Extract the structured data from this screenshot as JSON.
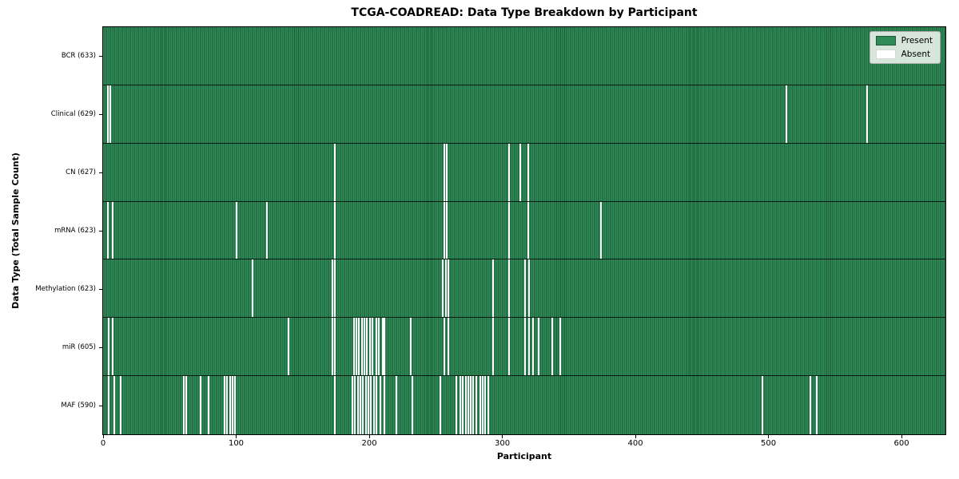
{
  "title": "TCGA-COADREAD: Data Type Breakdown by Participant",
  "xlabel": "Participant",
  "ylabel": "Data Type (Total Sample Count)",
  "legend": {
    "present_label": "Present",
    "absent_label": "Absent"
  },
  "colors": {
    "figure_bg": "#ffffff",
    "present": "#2E8B57",
    "present_dark": "#1D5837",
    "absent": "#FFFFFF",
    "row_separator": "#1a1a1a"
  },
  "chart_data": {
    "type": "heatmap",
    "title": "TCGA-COADREAD: Data Type Breakdown by Participant",
    "xlabel": "Participant",
    "ylabel": "Data Type (Total Sample Count)",
    "legend_entries": [
      "Present",
      "Absent"
    ],
    "legend_position": "upper right",
    "grid": false,
    "xlim": [
      0,
      633
    ],
    "x_ticks": [
      0,
      100,
      200,
      300,
      400,
      500,
      600
    ],
    "n_participants": 633,
    "value_encoding": {
      "present": "seagreen",
      "absent": "white"
    },
    "rows": [
      {
        "name": "bcr",
        "label": "BCR (633)",
        "data_type": "BCR",
        "total_samples": 633,
        "absent_participants": []
      },
      {
        "name": "clinical",
        "label": "Clinical (629)",
        "data_type": "Clinical",
        "total_samples": 629,
        "absent_participants": [
          3,
          5,
          513,
          574
        ]
      },
      {
        "name": "cn",
        "label": "CN (627)",
        "data_type": "CN",
        "total_samples": 627,
        "absent_participants": [
          174,
          256,
          258,
          305,
          313,
          319
        ]
      },
      {
        "name": "mrna",
        "label": "mRNA (623)",
        "data_type": "mRNA",
        "total_samples": 623,
        "absent_participants": [
          3,
          7,
          100,
          123,
          174,
          256,
          258,
          305,
          319,
          374
        ]
      },
      {
        "name": "methylation",
        "label": "Methylation (623)",
        "data_type": "Methylation",
        "total_samples": 623,
        "absent_participants": [
          112,
          172,
          174,
          255,
          257,
          259,
          293,
          305,
          317,
          320
        ]
      },
      {
        "name": "mir",
        "label": "miR (605)",
        "data_type": "miR",
        "total_samples": 605,
        "absent_participants": [
          4,
          7,
          139,
          172,
          174,
          188,
          190,
          192,
          194,
          196,
          198,
          200,
          202,
          205,
          207,
          210,
          211,
          231,
          256,
          259,
          293,
          305,
          317,
          320,
          323,
          327,
          337,
          343
        ]
      },
      {
        "name": "maf",
        "label": "MAF (590)",
        "data_type": "MAF",
        "total_samples": 590,
        "absent_participants": [
          4,
          8,
          13,
          60,
          62,
          73,
          79,
          91,
          93,
          95,
          97,
          99,
          174,
          187,
          189,
          191,
          193,
          195,
          197,
          199,
          201,
          203,
          205,
          208,
          211,
          220,
          232,
          253,
          265,
          268,
          270,
          272,
          274,
          276,
          278,
          280,
          283,
          285,
          287,
          289,
          495,
          531,
          536
        ]
      }
    ]
  }
}
